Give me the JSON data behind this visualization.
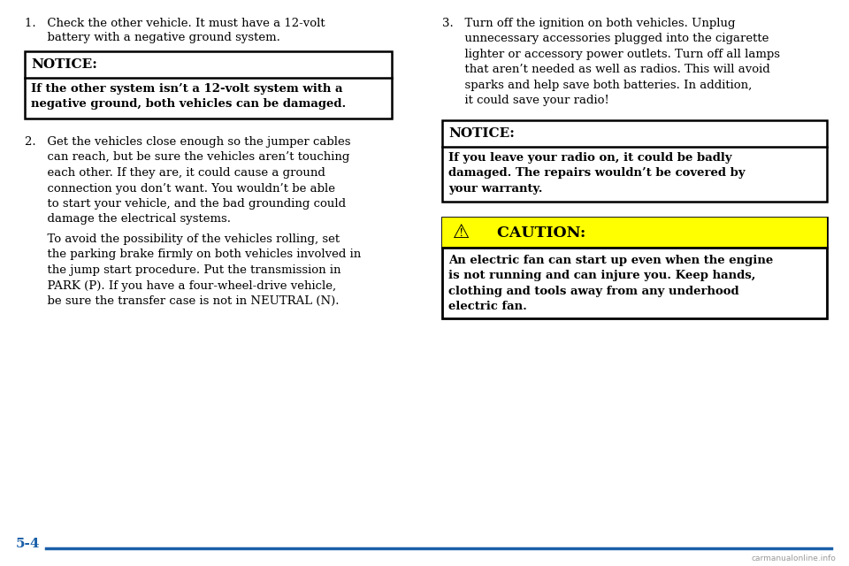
{
  "bg_color": "#ffffff",
  "text_color": "#000000",
  "page_label": "5-4",
  "page_label_color": "#1a5fa8",
  "line_color": "#1a5fa8",
  "item1_text_line1": "1.   Check the other vehicle. It must have a 12-volt",
  "item1_text_line2": "      battery with a negative ground system.",
  "notice1_title": "NOTICE:",
  "notice1_body": "If the other system isn’t a 12-volt system with a\nnegative ground, both vehicles can be damaged.",
  "item2_text": "2.   Get the vehicles close enough so the jumper cables\n      can reach, but be sure the vehicles aren’t touching\n      each other. If they are, it could cause a ground\n      connection you don’t want. You wouldn’t be able\n      to start your vehicle, and the bad grounding could\n      damage the electrical systems.",
  "item2_cont": "      To avoid the possibility of the vehicles rolling, set\n      the parking brake firmly on both vehicles involved in\n      the jump start procedure. Put the transmission in\n      PARK (P). If you have a four-wheel-drive vehicle,\n      be sure the transfer case is not in NEUTRAL (N).",
  "item3_text": "3.   Turn off the ignition on both vehicles. Unplug\n      unnecessary accessories plugged into the cigarette\n      lighter or accessory power outlets. Turn off all lamps\n      that aren’t needed as well as radios. This will avoid\n      sparks and help save both batteries. In addition,\n      it could save your radio!",
  "notice2_title": "NOTICE:",
  "notice2_body": "If you leave your radio on, it could be badly\ndamaged. The repairs wouldn’t be covered by\nyour warranty.",
  "caution_title": "  CAUTION:",
  "caution_body": "An electric fan can start up even when the engine\nis not running and can injure you. Keep hands,\nclothing and tools away from any underhood\nelectric fan.",
  "caution_bg": "#ffff00",
  "caution_icon": "⚠",
  "watermark": "carmanualonline.info"
}
